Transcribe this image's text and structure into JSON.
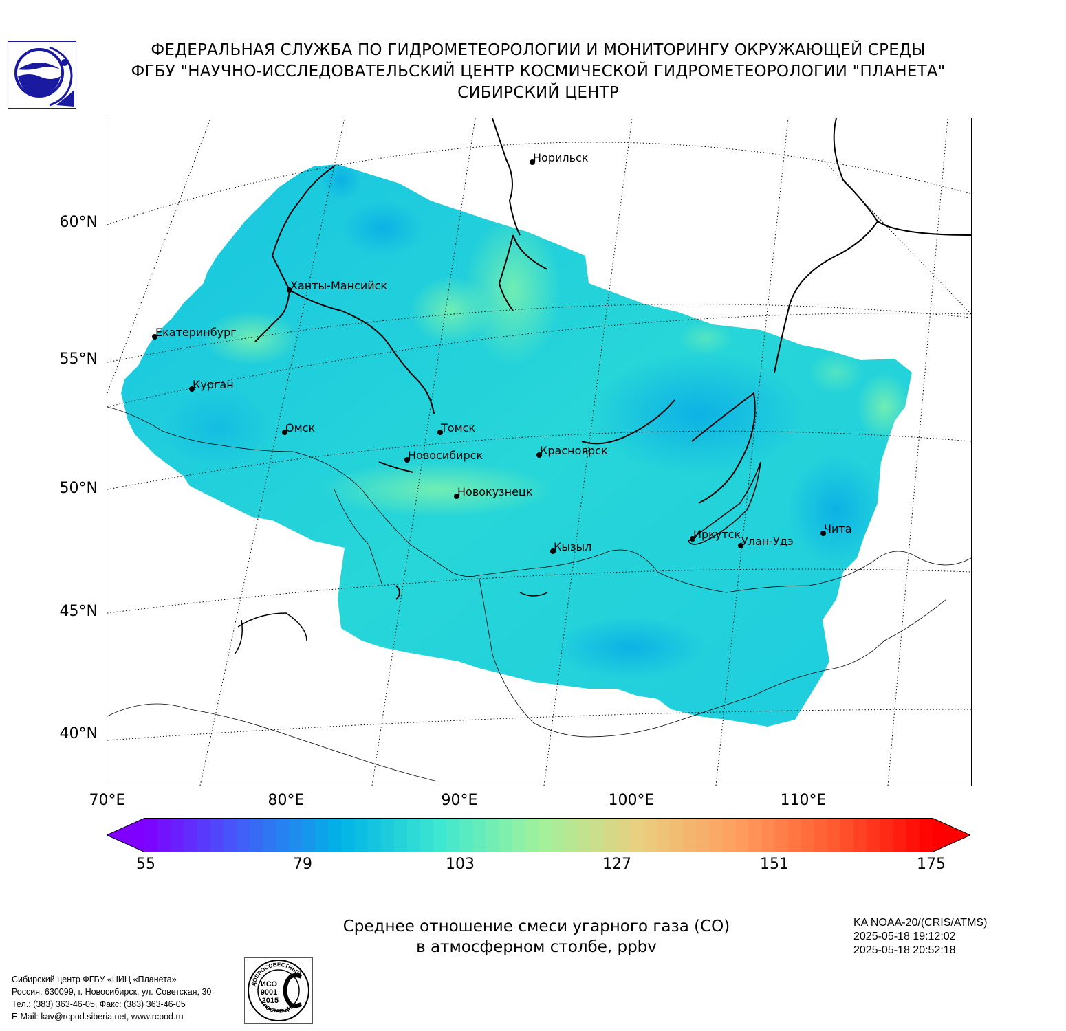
{
  "header": {
    "line1": "ФЕДЕРАЛЬНАЯ СЛУЖБА ПО ГИДРОМЕТЕОРОЛОГИИ И МОНИТОРИНГУ ОКРУЖАЮЩЕЙ СРЕДЫ",
    "line2": "ФГБУ \"НАУЧНО-ИССЛЕДОВАТЕЛЬСКИЙ ЦЕНТР КОСМИЧЕСКОЙ ГИДРОМЕТЕОРОЛОГИИ \"ПЛАНЕТА\"",
    "line3": "СИБИРСКИЙ ЦЕНТР"
  },
  "map": {
    "lat_labels": [
      "60°N",
      "55°N",
      "50°N",
      "45°N",
      "40°N"
    ],
    "lon_labels": [
      "70°E",
      "80°E",
      "90°E",
      "100°E",
      "110°E"
    ],
    "cities": [
      {
        "name": "Норильск"
      },
      {
        "name": "Ханты-Мансийск"
      },
      {
        "name": "Екатеринбург"
      },
      {
        "name": "Курган"
      },
      {
        "name": "Омск"
      },
      {
        "name": "Томск"
      },
      {
        "name": "Новосибирск"
      },
      {
        "name": "Красноярск"
      },
      {
        "name": "Новокузнецк"
      },
      {
        "name": "Кызыл"
      },
      {
        "name": "Иркутск"
      },
      {
        "name": "Улан-Удэ"
      },
      {
        "name": "Чита"
      }
    ],
    "field_colors": {
      "low": "#0fb6e8",
      "mid": "#22d3dc",
      "high": "#6fefb4"
    }
  },
  "colorbar": {
    "ticks": [
      "55",
      "79",
      "103",
      "127",
      "151",
      "175"
    ],
    "min": 55,
    "max": 175,
    "colors": [
      "#7f00ff",
      "#4060f8",
      "#00b4e6",
      "#3ee8d0",
      "#a0f29c",
      "#e8d080",
      "#ffa060",
      "#ff5a30",
      "#ff0000"
    ]
  },
  "caption": {
    "line1": "Среднее отношение смеси угарного газа (СО)",
    "line2": "в атмосферном столбе, ppbv"
  },
  "satellite": {
    "name": "KA NOAA-20/(CRIS/ATMS)",
    "start": "2025-05-18 19:12:02",
    "end": "2025-05-18 20:52:18"
  },
  "contacts": {
    "line1": "Сибирский центр ФГБУ «НИЦ «Планета»",
    "line2": "Россия, 630099, г. Новосибирск, ул. Советская, 30",
    "line3": "Тел.: (383) 363-46-05, Факс: (383) 363-46-05",
    "line4": "E-Mail: kav@rcpod.siberia.net, www.rcpod.ru"
  },
  "iso_badge": {
    "top_text": "ДОБРОСОВЕСТНЫЙ",
    "line1": "ИСО",
    "line2": "9001",
    "line3": "-2015",
    "bottom_text": "ПОСТАВЩИК"
  }
}
